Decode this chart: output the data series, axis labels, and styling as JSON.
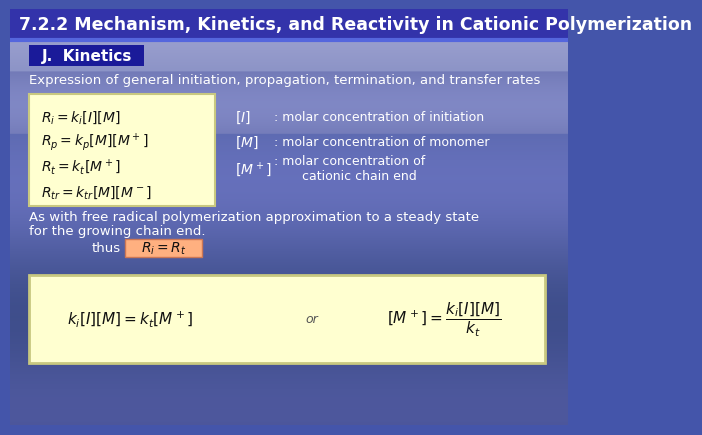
{
  "title": "7.2.2 Mechanism, Kinetics, and Reactivity in Cationic Polymerization",
  "title_color": "#FFFFFF",
  "title_fontsize": 12.5,
  "header_label": "J.  Kinetics",
  "header_bg": "#1a1a99",
  "header_text_color": "#FFFFFF",
  "subtitle": "Expression of general initiation, propagation, termination, and transfer rates",
  "equations_left": [
    "$R_i = k_i[I][M]$",
    "$R_p = k_p[M][M^+]$",
    "$R_t = k_t[M^+]$",
    "$R_{tr} = k_{tr}[M][M^-]$"
  ],
  "annot_syms": [
    "$[I]$",
    "$[M]$",
    "$[M^+]$"
  ],
  "annot_texts": [
    ": molar concentration of initiation",
    ": molar concentration of monomer",
    ": molar concentration of\n       cationic chain end"
  ],
  "steady_state_text1": "As with free radical polymerization approximation to a steady state",
  "steady_state_text2": "for the growing chain end.",
  "thus_label": "thus",
  "thus_eq": "$R_i = R_t$",
  "bottom_eq_left": "$k_i[I][M] = k_t[M^+]$",
  "bottom_or": "or",
  "bottom_eq_right": "$[M^+] = \\dfrac{k_i[I][M]}{k_t}$",
  "text_color_white": "#FFFFFF",
  "eq_box_color": "#FFFFD0",
  "eq_box_edge": "#C8C880",
  "thus_box_color": "#FFB080",
  "thus_box_edge": "#CC7755",
  "bottom_box_color": "#FFFFD0",
  "bottom_box_edge": "#C8C880",
  "title_bar_color": "#3333aa",
  "line_color": "#4455cc",
  "bg_top": "#8899cc",
  "bg_bottom": "#3344aa"
}
